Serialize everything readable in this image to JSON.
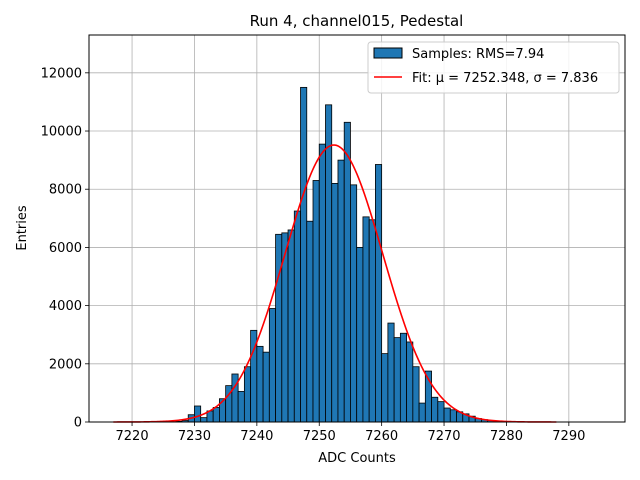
{
  "chart_data": {
    "type": "bar",
    "title": "Run 4, channel015, Pedestal",
    "xlabel": "ADC Counts",
    "ylabel": "Entries",
    "xlim": [
      7213.1,
      7299.0
    ],
    "ylim": [
      0,
      13300
    ],
    "grid": true,
    "legend_position": "top-right",
    "x_ticks": [
      7220,
      7230,
      7240,
      7250,
      7260,
      7270,
      7280,
      7290
    ],
    "y_ticks": [
      0,
      2000,
      4000,
      6000,
      8000,
      10000,
      12000
    ],
    "bin_width": 1,
    "series": [
      {
        "name": "Samples: RMS=7.94",
        "kind": "histogram",
        "color": "#1f77b4",
        "edge_color": "#000000",
        "bin_lefts": [
          7227,
          7228,
          7229,
          7230,
          7231,
          7232,
          7233,
          7234,
          7235,
          7236,
          7237,
          7238,
          7239,
          7240,
          7241,
          7242,
          7243,
          7244,
          7245,
          7246,
          7247,
          7248,
          7249,
          7250,
          7251,
          7252,
          7253,
          7254,
          7255,
          7256,
          7257,
          7258,
          7259,
          7260,
          7261,
          7262,
          7263,
          7264,
          7265,
          7266,
          7267,
          7268,
          7269,
          7270,
          7271,
          7272,
          7273,
          7274,
          7275,
          7276,
          7277,
          7278,
          7279
        ],
        "values": [
          20,
          50,
          250,
          550,
          150,
          380,
          500,
          800,
          1250,
          1650,
          1050,
          1900,
          3150,
          2600,
          2400,
          3900,
          6450,
          6500,
          6600,
          7250,
          11500,
          6900,
          8300,
          9550,
          10900,
          8200,
          9000,
          10300,
          8150,
          6000,
          7050,
          6950,
          8850,
          2350,
          3400,
          2900,
          3050,
          2750,
          1900,
          650,
          1750,
          850,
          700,
          480,
          420,
          350,
          280,
          200,
          120,
          80,
          50,
          30,
          20
        ]
      },
      {
        "name": "Fit: μ = 7252.348, σ = 7.836",
        "kind": "gaussian_fit",
        "color": "#ff0000",
        "mu": 7252.348,
        "sigma": 7.836,
        "amplitude": 9520,
        "x_range": [
          7217,
          7288
        ]
      }
    ]
  }
}
